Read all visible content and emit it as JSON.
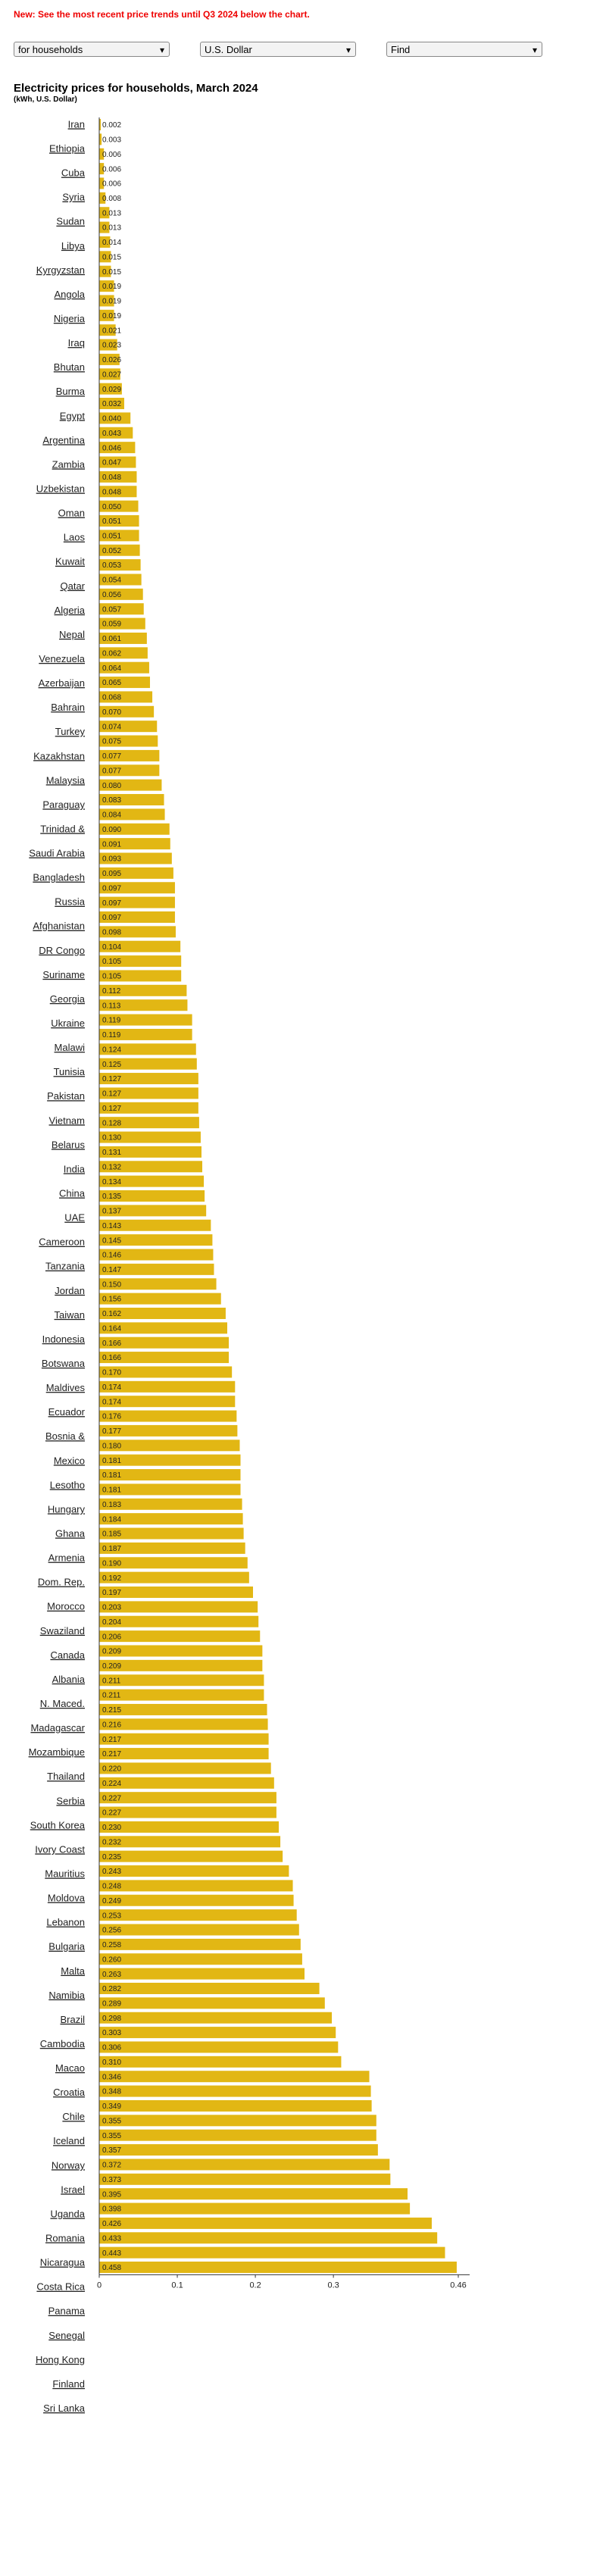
{
  "notice": "New: See the most recent price trends until Q3 2024 below the chart.",
  "controls": [
    "for households",
    "U.S. Dollar",
    "Find"
  ],
  "country_links": [
    "Iran",
    "Ethiopia",
    "Cuba",
    "Syria",
    "Sudan",
    "Libya",
    "Kyrgyzstan",
    "Angola",
    "Nigeria",
    "Iraq",
    "Bhutan",
    "Burma",
    "Egypt",
    "Argentina",
    "Zambia",
    "Uzbekistan",
    "Oman",
    "Laos",
    "Kuwait",
    "Qatar",
    "Algeria",
    "Nepal",
    "Venezuela",
    "Azerbaijan",
    "Bahrain",
    "Turkey",
    "Kazakhstan",
    "Malaysia",
    "Paraguay",
    "Trinidad &",
    "Saudi Arabia",
    "Bangladesh",
    "Russia",
    "Afghanistan",
    "DR Congo",
    "Suriname",
    "Georgia",
    "Ukraine",
    "Malawi",
    "Tunisia",
    "Pakistan",
    "Vietnam",
    "Belarus",
    "India",
    "China",
    "UAE",
    "Cameroon",
    "Tanzania",
    "Jordan",
    "Taiwan",
    "Indonesia",
    "Botswana",
    "Maldives",
    "Ecuador",
    "Bosnia &",
    "Mexico",
    "Lesotho",
    "Hungary",
    "Ghana",
    "Armenia",
    "Dom. Rep.",
    "Morocco",
    "Swaziland",
    "Canada",
    "Albania",
    "N. Maced.",
    "Madagascar",
    "Mozambique",
    "Thailand",
    "Serbia",
    "South Korea",
    "Ivory Coast",
    "Mauritius",
    "Moldova",
    "Lebanon",
    "Bulgaria",
    "Malta",
    "Namibia",
    "Brazil",
    "Cambodia",
    "Macao",
    "Croatia",
    "Chile",
    "Iceland",
    "Norway",
    "Israel",
    "Uganda",
    "Romania",
    "Nicaragua",
    "Costa Rica",
    "Panama",
    "Senegal",
    "Hong Kong",
    "Finland",
    "Sri Lanka"
  ],
  "chart_data": {
    "type": "hbar",
    "title": "Electricity prices for households, March 2024",
    "subtitle": "(kWh, U.S. Dollar)",
    "color": "#e2b714",
    "values": [
      0.002,
      0.003,
      0.006,
      0.006,
      0.006,
      0.008,
      0.013,
      0.013,
      0.014,
      0.015,
      0.015,
      0.019,
      0.019,
      0.019,
      0.021,
      0.023,
      0.026,
      0.027,
      0.029,
      0.032,
      0.04,
      0.043,
      0.046,
      0.047,
      0.048,
      0.048,
      0.05,
      0.051,
      0.051,
      0.052,
      0.053,
      0.054,
      0.056,
      0.057,
      0.059,
      0.061,
      0.062,
      0.064,
      0.065,
      0.068,
      0.07,
      0.074,
      0.075,
      0.077,
      0.077,
      0.08,
      0.083,
      0.084,
      0.09,
      0.091,
      0.093,
      0.095,
      0.097,
      0.097,
      0.097,
      0.098,
      0.104,
      0.105,
      0.105,
      0.112,
      0.113,
      0.119,
      0.119,
      0.124,
      0.125,
      0.127,
      0.127,
      0.127,
      0.128,
      0.13,
      0.131,
      0.132,
      0.134,
      0.135,
      0.137,
      0.143,
      0.145,
      0.146,
      0.147,
      0.15,
      0.156,
      0.162,
      0.164,
      0.166,
      0.166,
      0.17,
      0.174,
      0.174,
      0.176,
      0.177,
      0.18,
      0.181,
      0.181,
      0.181,
      0.183,
      0.184,
      0.185,
      0.187,
      0.19,
      0.192,
      0.197,
      0.203,
      0.204,
      0.206,
      0.209,
      0.209,
      0.211,
      0.211,
      0.215,
      0.216,
      0.217,
      0.217,
      0.22,
      0.224,
      0.227,
      0.227,
      0.23,
      0.232,
      0.235,
      0.243,
      0.248,
      0.249,
      0.253,
      0.256,
      0.258,
      0.26,
      0.263,
      0.282,
      0.289,
      0.298,
      0.303,
      0.306,
      0.31,
      0.346,
      0.348,
      0.349,
      0.355,
      0.355,
      0.357,
      0.372,
      0.373,
      0.395,
      0.398,
      0.426,
      0.433,
      0.443,
      0.458
    ],
    "value_labels": [
      "0.002",
      "0.003",
      "0.006",
      "0.006",
      "0.006",
      "0.008",
      "0.013",
      "0.013",
      "0.014",
      "0.015",
      "0.015",
      "0.019",
      "0.019",
      "0.019",
      "0.021",
      "0.023",
      "0.026",
      "0.027",
      "0.029",
      "0.032",
      "0.040",
      "0.043",
      "0.046",
      "0.047",
      "0.048",
      "0.048",
      "0.050",
      "0.051",
      "0.051",
      "0.052",
      "0.053",
      "0.054",
      "0.056",
      "0.057",
      "0.059",
      "0.061",
      "0.062",
      "0.064",
      "0.065",
      "0.068",
      "0.070",
      "0.074",
      "0.075",
      "0.077",
      "0.077",
      "0.080",
      "0.083",
      "0.084",
      "0.090",
      "0.091",
      "0.093",
      "0.095",
      "0.097",
      "0.097",
      "0.097",
      "0.098",
      "0.104",
      "0.105",
      "0.105",
      "0.112",
      "0.113",
      "0.119",
      "0.119",
      "0.124",
      "0.125",
      "0.127",
      "0.127",
      "0.127",
      "0.128",
      "0.130",
      "0.131",
      "0.132",
      "0.134",
      "0.135",
      "0.137",
      "0.143",
      "0.145",
      "0.146",
      "0.147",
      "0.150",
      "0.156",
      "0.162",
      "0.164",
      "0.166",
      "0.166",
      "0.170",
      "0.174",
      "0.174",
      "0.176",
      "0.177",
      "0.180",
      "0.181",
      "0.181",
      "0.181",
      "0.183",
      "0.184",
      "0.185",
      "0.187",
      "0.190",
      "0.192",
      "0.197",
      "0.203",
      "0.204",
      "0.206",
      "0.209",
      "0.209",
      "0.211",
      "0.211",
      "0.215",
      "0.216",
      "0.217",
      "0.217",
      "0.220",
      "0.224",
      "0.227",
      "0.227",
      "0.230",
      "0.232",
      "0.235",
      "0.243",
      "0.248",
      "0.249",
      "0.253",
      "0.256",
      "0.258",
      "0.260",
      "0.263",
      "0.282",
      "0.289",
      "0.298",
      "0.303",
      "0.306",
      "0.310",
      "0.346",
      "0.348",
      "0.349",
      "0.355",
      "0.355",
      "0.357",
      "0.372",
      "0.373",
      "0.395",
      "0.398",
      "0.426",
      "0.433",
      "0.443",
      "0.458"
    ],
    "xlim": [
      0,
      0.46
    ],
    "xticks": [
      0,
      0.1,
      0.2,
      0.3,
      0.46
    ]
  }
}
